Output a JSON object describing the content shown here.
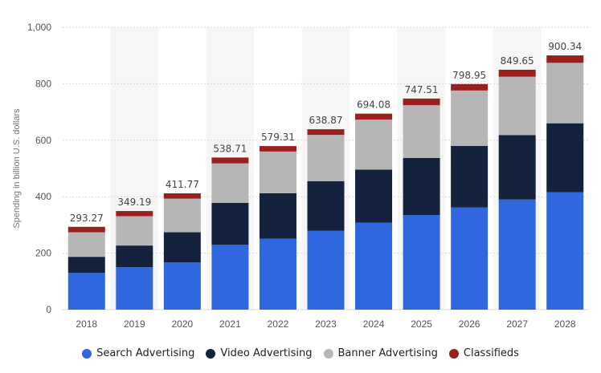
{
  "chart_data": {
    "type": "bar",
    "stacked": true,
    "ylabel": "Spending in billion U.S. dollars",
    "ylim": [
      0,
      1000
    ],
    "yticks": [
      "0",
      "200",
      "400",
      "600",
      "800",
      "1,000"
    ],
    "categories": [
      "2018",
      "2019",
      "2020",
      "2021",
      "2022",
      "2023",
      "2024",
      "2025",
      "2026",
      "2027",
      "2028"
    ],
    "totals": [
      "293.27",
      "349.19",
      "411.77",
      "538.71",
      "579.31",
      "638.87",
      "694.08",
      "747.51",
      "798.95",
      "849.65",
      "900.34"
    ],
    "series": [
      {
        "name": "Search Advertising",
        "color": "#2f68de",
        "values": [
          130,
          150,
          167,
          230,
          251,
          279,
          308,
          335,
          362,
          390,
          416
        ]
      },
      {
        "name": "Video Advertising",
        "color": "#14223d",
        "values": [
          57,
          77,
          107,
          148,
          161,
          176,
          188,
          202,
          218,
          228,
          244
        ]
      },
      {
        "name": "Banner Advertising",
        "color": "#b6b6b6",
        "values": [
          87,
          104,
          119,
          140,
          148,
          164,
          177,
          187,
          196,
          207,
          214
        ]
      },
      {
        "name": "Classifieds",
        "color": "#9a1f1f",
        "values": [
          19.27,
          18.19,
          18.77,
          20.71,
          19.31,
          19.87,
          21.08,
          23.51,
          22.95,
          24.65,
          26.34
        ]
      }
    ],
    "grid": true,
    "legend": "bottom"
  }
}
